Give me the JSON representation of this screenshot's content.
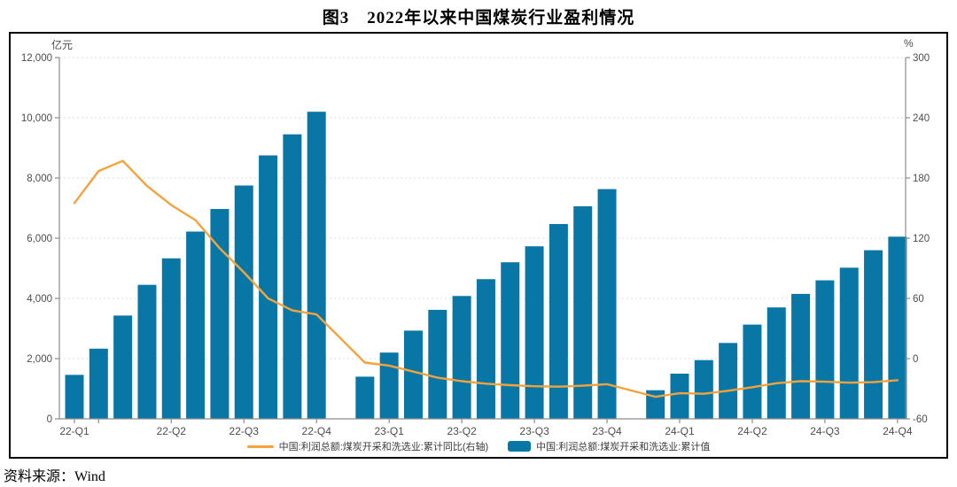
{
  "title": "图3　2022年以来中国煤炭行业盈利情况",
  "source": "资料来源：Wind",
  "colors": {
    "bar": "#0877A6",
    "line": "#F6A23C",
    "axis": "#8C8C8C",
    "grid": "#DEDEDE",
    "tick_text": "#4D4D4D",
    "border": "#000000"
  },
  "legend": {
    "items": [
      {
        "type": "line",
        "label": "中国:利润总额:煤炭开采和洗选业:累计同比(右轴)",
        "color": "#F6A23C"
      },
      {
        "type": "bar",
        "label": "中国:利润总额:煤炭开采和洗选业:累计值",
        "color": "#0877A6"
      }
    ]
  },
  "chart_data": {
    "type": "bar",
    "subtype": "bar+line combo, dual axis",
    "title": "图3 2022年以来中国煤炭行业盈利情况",
    "left_axis": {
      "unit": "亿元",
      "min": 0,
      "max": 12000,
      "step": 2000,
      "ticks": [
        {
          "value": 0,
          "label": "0"
        },
        {
          "value": 2000,
          "label": "2,000"
        },
        {
          "value": 4000,
          "label": "4,000"
        },
        {
          "value": 6000,
          "label": "6,000"
        },
        {
          "value": 8000,
          "label": "8,000"
        },
        {
          "value": 10000,
          "label": "10,000"
        },
        {
          "value": 12000,
          "label": "12,000"
        }
      ]
    },
    "right_axis": {
      "unit": "%",
      "min": -60,
      "max": 300,
      "step": 60,
      "ticks": [
        {
          "value": -60,
          "label": "-60"
        },
        {
          "value": 0,
          "label": "0"
        },
        {
          "value": 60,
          "label": "60"
        },
        {
          "value": 120,
          "label": "120"
        },
        {
          "value": 180,
          "label": "180"
        },
        {
          "value": 240,
          "label": "240"
        },
        {
          "value": 300,
          "label": "300"
        }
      ]
    },
    "x_axis": {
      "n_slots": 35,
      "note": "monthly slots Feb22-Dec24; Jan23 (slot 11) and Jan24 (slot 23) are empty gaps",
      "minor_tick_slots": [
        1
      ],
      "quarter_ticks": [
        {
          "slot": 0,
          "label": "22-Q1"
        },
        {
          "slot": 4,
          "label": "22-Q2"
        },
        {
          "slot": 7,
          "label": "22-Q3"
        },
        {
          "slot": 10,
          "label": "22-Q4"
        },
        {
          "slot": 13,
          "label": "23-Q1"
        },
        {
          "slot": 16,
          "label": "23-Q2"
        },
        {
          "slot": 19,
          "label": "23-Q3"
        },
        {
          "slot": 22,
          "label": "23-Q4"
        },
        {
          "slot": 25,
          "label": "24-Q1"
        },
        {
          "slot": 28,
          "label": "24-Q2"
        },
        {
          "slot": 31,
          "label": "24-Q3"
        },
        {
          "slot": 34,
          "label": "24-Q4"
        }
      ]
    },
    "categories": [
      "22-02",
      "22-03",
      "22-04",
      "22-05",
      "22-06",
      "22-07",
      "22-08",
      "22-09",
      "22-10",
      "22-11",
      "22-12",
      "23-02",
      "23-03",
      "23-04",
      "23-05",
      "23-06",
      "23-07",
      "23-08",
      "23-09",
      "23-10",
      "23-11",
      "23-12",
      "24-02",
      "24-03",
      "24-04",
      "24-05",
      "24-06",
      "24-07",
      "24-08",
      "24-09",
      "24-10",
      "24-11",
      "24-12"
    ],
    "slots": [
      0,
      1,
      2,
      3,
      4,
      5,
      6,
      7,
      8,
      9,
      10,
      12,
      13,
      14,
      15,
      16,
      17,
      18,
      19,
      20,
      21,
      22,
      24,
      25,
      26,
      27,
      28,
      29,
      30,
      31,
      32,
      33,
      34
    ],
    "series": [
      {
        "name": "中国:利润总额:煤炭开采和洗选业:累计值",
        "type": "bar",
        "axis": "left",
        "unit": "亿元",
        "color": "#0877A6",
        "values": [
          1460,
          2330,
          3430,
          4450,
          5330,
          6220,
          6970,
          7750,
          8750,
          9450,
          10200,
          1400,
          2200,
          2930,
          3620,
          4080,
          4640,
          5200,
          5730,
          6470,
          7060,
          7630,
          950,
          1500,
          1950,
          2520,
          3130,
          3700,
          4150,
          4600,
          5020,
          5600,
          6050
        ]
      },
      {
        "name": "中国:利润总额:煤炭开采和洗选业:累计同比(右轴)",
        "type": "line",
        "axis": "right",
        "unit": "%",
        "color": "#F6A23C",
        "values": [
          155,
          187,
          197,
          172,
          153,
          138,
          110,
          86,
          60,
          48,
          44,
          -4,
          -7,
          -13,
          -19,
          -22.5,
          -25,
          -26.5,
          -27.5,
          -28,
          -27,
          -25.5,
          -38,
          -34.5,
          -35,
          -32,
          -28.5,
          -24.5,
          -22.5,
          -23,
          -24,
          -23.5,
          -21.5
        ]
      }
    ]
  }
}
